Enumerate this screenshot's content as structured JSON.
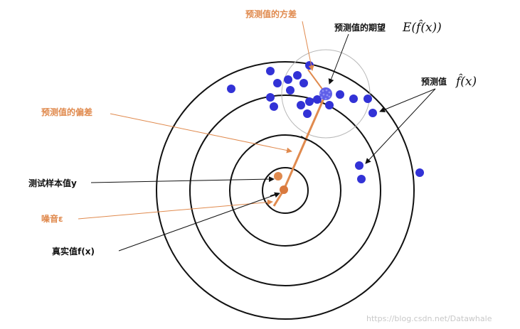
{
  "labels": {
    "variance": "预测值的方差",
    "expectation": "预测值的期望",
    "expectation_math": "E(f̂(x))",
    "prediction": "预测值",
    "prediction_math": "f̂(x)",
    "bias": "预测值的偏差",
    "sample": "测试样本值y",
    "noise": "噪音ε",
    "true_value": "真实值f(x)"
  },
  "watermark": "https://blog.csdn.net/Datawhale",
  "colors": {
    "orange": "#e08a4e",
    "blue": "#3232d6",
    "ring": "#111111",
    "variance_ring": "#b8b8b8",
    "text": "#111111",
    "watermark": "#c8c8c8"
  }
}
